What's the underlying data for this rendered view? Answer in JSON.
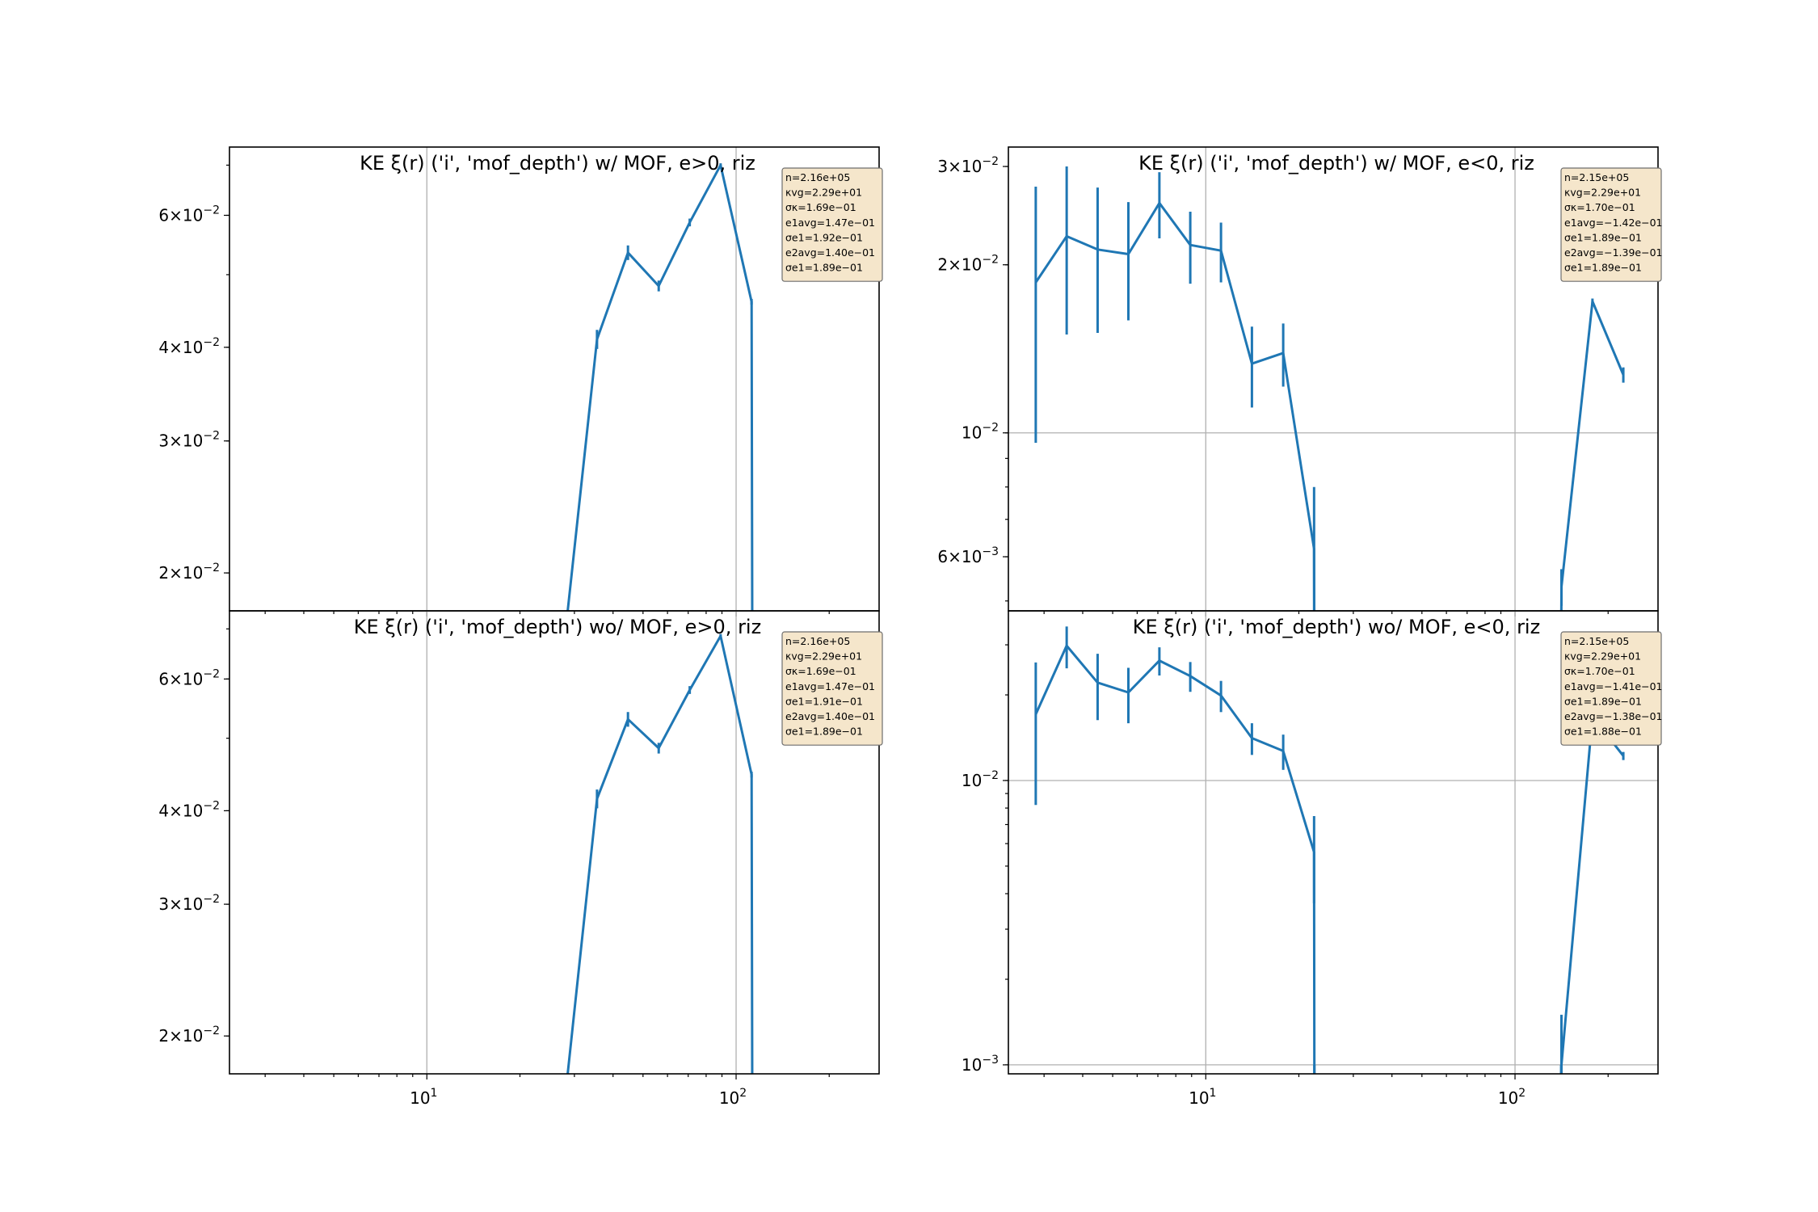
{
  "figure": {
    "background": "#ffffff",
    "line_color": "#1f77b4",
    "grid_color": "#b0b0b0",
    "stats_box_fill": "#f5e6cb"
  },
  "chart_data": [
    {
      "id": "tl",
      "type": "line",
      "title": "KE ξ(r) ('i', 'mof_depth') w/ MOF, e>0,  riz",
      "xscale": "log",
      "yscale": "log",
      "xlim": [
        2.3,
        290
      ],
      "ylim": [
        0.0178,
        0.074
      ],
      "grid": true,
      "xticks": [],
      "xtick_labels": [],
      "yticks": [
        0.02,
        0.03,
        0.04,
        0.06
      ],
      "ytick_labels": [
        {
          "m": "2",
          "e": "−2"
        },
        {
          "m": "3",
          "e": "−2"
        },
        {
          "m": "4",
          "e": "−2"
        },
        {
          "m": "6",
          "e": "−2"
        }
      ],
      "points": [
        {
          "x": 28.2,
          "y": 0.017,
          "err": 0.0003
        },
        {
          "x": 35.5,
          "y": 0.041,
          "err": 0.0012
        },
        {
          "x": 44.7,
          "y": 0.0535,
          "err": 0.0012
        },
        {
          "x": 56.2,
          "y": 0.0483,
          "err": 0.0008
        },
        {
          "x": 70.8,
          "y": 0.0587,
          "err": 0.0007
        },
        {
          "x": 89.1,
          "y": 0.07,
          "err": 0.0004
        },
        {
          "x": 112.2,
          "y": 0.046,
          "err": 0.0004
        },
        {
          "x": 112.8,
          "y": 0.017,
          "err": 0.0001
        }
      ],
      "stats": [
        "n=2.16e+05",
        "κvg=2.29e+01",
        "σκ=1.69e−01",
        "e1avg=1.47e−01",
        "σe1=1.92e−01",
        "e2avg=1.40e−01",
        "σe1=1.89e−01"
      ]
    },
    {
      "id": "tr",
      "type": "line",
      "title": "KE ξ(r) ('i', 'mof_depth') w/ MOF, e<0,  riz",
      "xscale": "log",
      "yscale": "log",
      "xlim": [
        2.3,
        290
      ],
      "ylim": [
        0.0048,
        0.0325
      ],
      "grid": true,
      "xticks": [],
      "xtick_labels": [],
      "yticks": [
        0.006,
        0.01,
        0.02,
        0.03
      ],
      "ytick_labels": [
        {
          "m": "6",
          "e": "−3"
        },
        {
          "m": "",
          "e": "−2"
        },
        {
          "m": "2",
          "e": "−2"
        },
        {
          "m": "3",
          "e": "−2"
        }
      ],
      "points": [
        {
          "x": 2.82,
          "y": 0.0186,
          "err": 0.009
        },
        {
          "x": 3.55,
          "y": 0.0225,
          "err": 0.0075
        },
        {
          "x": 4.47,
          "y": 0.0213,
          "err": 0.0062
        },
        {
          "x": 5.62,
          "y": 0.0209,
          "err": 0.005
        },
        {
          "x": 7.08,
          "y": 0.0258,
          "err": 0.0035
        },
        {
          "x": 8.91,
          "y": 0.0217,
          "err": 0.0032
        },
        {
          "x": 11.2,
          "y": 0.0212,
          "err": 0.0026
        },
        {
          "x": 14.1,
          "y": 0.0133,
          "err": 0.0022
        },
        {
          "x": 17.8,
          "y": 0.0139,
          "err": 0.0018
        },
        {
          "x": 22.4,
          "y": 0.0062,
          "err": 0.0018
        },
        {
          "x": 22.45,
          "y": 0.004,
          "err": 0.0001
        },
        {
          "x": 141,
          "y": 0.004,
          "err": 0.0001
        },
        {
          "x": 141.3,
          "y": 0.0053,
          "err": 0.0004
        },
        {
          "x": 178,
          "y": 0.0172,
          "err": 0.0002
        },
        {
          "x": 224,
          "y": 0.0127,
          "err": 0.0004
        }
      ],
      "stats": [
        "n=2.15e+05",
        "κvg=2.29e+01",
        "σκ=1.70e−01",
        "e1avg=−1.42e−01",
        "σe1=1.89e−01",
        "e2avg=−1.39e−01",
        "σe1=1.89e−01"
      ]
    },
    {
      "id": "bl",
      "type": "line",
      "title": "KE ξ(r) ('i', 'mof_depth') wo/ MOF, e>0,  riz",
      "xscale": "log",
      "yscale": "log",
      "xlim": [
        2.3,
        290
      ],
      "ylim": [
        0.0178,
        0.074
      ],
      "grid": true,
      "xticks": [
        10,
        100
      ],
      "xtick_labels": [
        {
          "m": "10",
          "e": "1"
        },
        {
          "m": "10",
          "e": "2"
        }
      ],
      "yticks": [
        0.02,
        0.03,
        0.04,
        0.06
      ],
      "ytick_labels": [
        {
          "m": "2",
          "e": "−2"
        },
        {
          "m": "3",
          "e": "−2"
        },
        {
          "m": "4",
          "e": "−2"
        },
        {
          "m": "6",
          "e": "−2"
        }
      ],
      "points": [
        {
          "x": 28.2,
          "y": 0.017,
          "err": 0.0003
        },
        {
          "x": 35.5,
          "y": 0.0415,
          "err": 0.0012
        },
        {
          "x": 44.7,
          "y": 0.053,
          "err": 0.0012
        },
        {
          "x": 56.2,
          "y": 0.0485,
          "err": 0.0008
        },
        {
          "x": 70.8,
          "y": 0.058,
          "err": 0.0007
        },
        {
          "x": 89.1,
          "y": 0.0685,
          "err": 0.0004
        },
        {
          "x": 112.2,
          "y": 0.0447,
          "err": 0.0004
        },
        {
          "x": 112.8,
          "y": 0.017,
          "err": 0.0001
        }
      ],
      "stats": [
        "n=2.16e+05",
        "κvg=2.29e+01",
        "σκ=1.69e−01",
        "e1avg=1.47e−01",
        "σe1=1.91e−01",
        "e2avg=1.40e−01",
        "σe1=1.89e−01"
      ]
    },
    {
      "id": "br",
      "type": "line",
      "title": "KE ξ(r) ('i', 'mof_depth') wo/ MOF, e<0,  riz",
      "xscale": "log",
      "yscale": "log",
      "xlim": [
        2.3,
        290
      ],
      "ylim": [
        0.00093,
        0.0395
      ],
      "grid": true,
      "xticks": [
        10,
        100
      ],
      "xtick_labels": [
        {
          "m": "10",
          "e": "1"
        },
        {
          "m": "10",
          "e": "2"
        }
      ],
      "yticks": [
        0.001,
        0.01
      ],
      "ytick_labels": [
        {
          "m": "",
          "e": "−3"
        },
        {
          "m": "",
          "e": "−2"
        }
      ],
      "points": [
        {
          "x": 2.82,
          "y": 0.0171,
          "err": 0.0089
        },
        {
          "x": 3.55,
          "y": 0.0298,
          "err": 0.005
        },
        {
          "x": 4.47,
          "y": 0.0221,
          "err": 0.0058
        },
        {
          "x": 5.62,
          "y": 0.0204,
          "err": 0.0045
        },
        {
          "x": 7.08,
          "y": 0.0264,
          "err": 0.003
        },
        {
          "x": 8.91,
          "y": 0.0233,
          "err": 0.0028
        },
        {
          "x": 11.2,
          "y": 0.0199,
          "err": 0.0025
        },
        {
          "x": 14.1,
          "y": 0.0141,
          "err": 0.0018
        },
        {
          "x": 17.8,
          "y": 0.0127,
          "err": 0.0018
        },
        {
          "x": 22.4,
          "y": 0.0056,
          "err": 0.0019
        },
        {
          "x": 22.45,
          "y": 0.0009,
          "err": 0.0001
        },
        {
          "x": 141,
          "y": 0.0009,
          "err": 0.0001
        },
        {
          "x": 141.3,
          "y": 0.001,
          "err": 0.0005
        },
        {
          "x": 178,
          "y": 0.0168,
          "err": 0.0003
        },
        {
          "x": 224,
          "y": 0.0122,
          "err": 0.0004
        }
      ],
      "stats": [
        "n=2.15e+05",
        "κvg=2.29e+01",
        "σκ=1.70e−01",
        "e1avg=−1.41e−01",
        "σe1=1.89e−01",
        "e2avg=−1.38e−01",
        "σe1=1.88e−01"
      ]
    }
  ]
}
